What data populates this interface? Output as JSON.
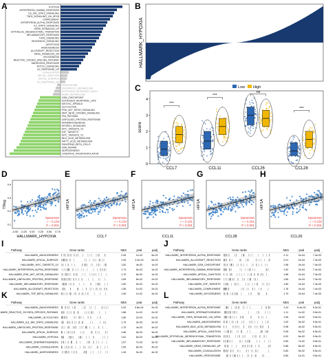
{
  "panels": {
    "A": "A",
    "B": "B",
    "C": "C",
    "D": "D",
    "E": "E",
    "F": "F",
    "G": "G",
    "H": "H",
    "I": "I",
    "J": "J",
    "K": "K",
    "L": "L"
  },
  "colors": {
    "blue": "#17396f",
    "grey": "#c8c8c8",
    "green": "#8fd46c",
    "low": "#2c67b3",
    "high": "#f2b705",
    "red": "#e03030",
    "scatter": "#2c78c7"
  },
  "chart_data": [
    {
      "id": "A",
      "type": "bar",
      "orientation": "horizontal",
      "categories": [
        "HYPOXIA",
        "INTERFERON_GAMMA_RESPONSE",
        "IL6_JAK_STAT3_SIGNALING",
        "TNFA_SIGNALING_VIA_NFKB",
        "COMPLEMENT",
        "INTERFERON_ALPHA_RESPONSE",
        "IL2_STAT5_SIGNALING",
        "KRAS_SIGNALING_UP",
        "EPITHELIAL_MESENCHYMAL_TRANSITION",
        "INFLAMMATORY_RESPONSE",
        "TGFB_SIGNALING",
        "HEDGEHOG_SIGNALING",
        "APOPTOSIS",
        "ANGIOGENESIS",
        "ALLOGRAFT_REJECTION",
        "KRAS_SIGNALING_DN",
        "MYOGENESIS",
        "REACTIVE_OXIGEN_SPECIES_PATHWAY",
        "ANDROGEN_RESPONSE",
        "NOTCH_SIGNALING",
        "UV_RESPONSE_UP",
        "COAGULATION",
        "APICAL_JUNCTION",
        "APICAL_SURFACE",
        "UV_RESPONSE_DN",
        "PEROXISOME",
        "XENOBIOTIC_METABOLISM",
        "ESTROGEN_RESPONSE_EARLY",
        "HEME_METABOLISM",
        "G2M_CHECKPOINT",
        "ESTROGEN_RESPONSE_LATE",
        "MITOTIC_SPINDLE",
        "GLYCOLYSIS",
        "PI3K_AKT_MTOR_SIGNALING",
        "WNT_BETA_CATENIN_SIGNALING",
        "P53_PATHWAY",
        "UNFOLDED_PROTEIN_RESPONSE",
        "SPERMATOGENESIS",
        "MTORC1_SIGNALING",
        "MYC_TARGETS_V2",
        "E2F_TARGETS",
        "MYC_TARGETS_V1",
        "BILE_ACID_METABOLISM",
        "FATTY_ACID_METABOLISM",
        "PANCREAS_BETA_CELLS",
        "DNA_REPAIR",
        "ADIPOGENESIS",
        "OXIDATIVE_PHOSPHORYLATION"
      ],
      "values": [
        0.9,
        0.82,
        0.78,
        0.76,
        0.72,
        0.68,
        0.66,
        0.62,
        0.6,
        0.58,
        0.56,
        0.52,
        0.5,
        0.46,
        0.44,
        0.4,
        0.36,
        0.33,
        0.3,
        0.27,
        0.24,
        0.12,
        0.1,
        0.09,
        0.07,
        -0.05,
        -0.07,
        -0.09,
        -0.11,
        -0.3,
        -0.32,
        -0.34,
        -0.36,
        -0.38,
        -0.4,
        -0.42,
        -0.44,
        -0.46,
        -0.48,
        -0.5,
        -0.52,
        -0.54,
        -0.56,
        -0.58,
        -0.6,
        -0.64,
        -0.68,
        -0.74
      ],
      "group_colors": [
        "blue",
        "grey",
        "green"
      ],
      "group_sizes": [
        21,
        8,
        19
      ],
      "xlim": [
        -0.8,
        1.0
      ]
    },
    {
      "id": "B",
      "type": "bar",
      "ylabel": "HALLMARK_HYPOXIA",
      "ylim": [
        -1.0,
        1.0
      ],
      "note": "sorted waterfall of ~200 samples"
    },
    {
      "id": "C",
      "type": "box",
      "ylabel": "score",
      "legend_title": "",
      "legend": [
        "Low",
        "High"
      ],
      "categories": [
        "CCL7",
        "CCL11",
        "CCL26",
        "CCL28"
      ],
      "ylim": [
        0,
        4.5
      ],
      "yticks": [
        0,
        1,
        2,
        3,
        4
      ],
      "series": [
        {
          "name": "Low",
          "median": [
            0.9,
            1.4,
            3.0,
            0.8
          ],
          "q1": [
            0.5,
            0.9,
            2.4,
            0.5
          ],
          "q3": [
            1.4,
            2.0,
            3.5,
            1.3
          ]
        },
        {
          "name": "High",
          "median": [
            1.8,
            2.3,
            2.8,
            1.5
          ],
          "q1": [
            1.3,
            1.8,
            2.3,
            1.0
          ],
          "q3": [
            2.3,
            2.8,
            3.3,
            2.0
          ]
        }
      ],
      "significance": [
        "***",
        "***",
        "ns",
        "***"
      ]
    },
    {
      "id": "D",
      "type": "scatter",
      "xlabel": "HALLMARK_HYPOXIA",
      "ylabel": "TReg",
      "xticks": [
        "-0.50",
        "-0.25",
        "0.00",
        "0.25",
        "0.50",
        "0.75"
      ],
      "yticks": [
        "0.4",
        "0.3",
        "0.2",
        "0.1"
      ],
      "stats": [
        "Spearman",
        "r = 0.194",
        "P = 0.001"
      ]
    },
    {
      "id": "E",
      "type": "scatter",
      "xlabel": "CCL7",
      "ylabel": "HIF1A",
      "stats": [
        "Spearman",
        "r = 0.154",
        "P < 0.001"
      ]
    },
    {
      "id": "F",
      "type": "scatter",
      "xlabel": "CCL11",
      "ylabel": "HIF1A",
      "stats": [
        "Spearman",
        "r = 0.181",
        "P < 0.001"
      ]
    },
    {
      "id": "G",
      "type": "scatter",
      "xlabel": "CCL28",
      "ylabel": "HIF1A",
      "stats": [
        "Spearman",
        "r = 0.281",
        "P < 0.001"
      ]
    },
    {
      "id": "H",
      "type": "scatter",
      "xlabel": "CCL26",
      "ylabel": "HIF1A",
      "stats": [
        "Spearman",
        "r = 0.150",
        "P < 0.001"
      ]
    }
  ],
  "gsea_tables": {
    "headers": {
      "pathway": "Pathway",
      "ranks": "Gene ranks",
      "nes": "NES",
      "pval": "pval",
      "padj": "padj"
    },
    "I": [
      {
        "p": "HALLMARK_ANGIOGENESIS",
        "nes": "2.06",
        "pval": "1e-03",
        "padj": "5e-03"
      },
      {
        "p": "HALLMARK_APICAL_SURFACE",
        "nes": "1.94",
        "pval": "2.0e-03",
        "padj": "5e-03"
      },
      {
        "p": "HALLMARK_MYC_TARGETS_V2",
        "nes": "1.82",
        "pval": "4e-03",
        "padj": "1e-02"
      },
      {
        "p": "HALLMARK_INTERFERON_ALPHA_RESPONSE",
        "nes": "1.74",
        "pval": "5e-03",
        "padj": "1e-02"
      },
      {
        "p": "HALLMARK_PI3K_AKT_MTOR_SIGNALING",
        "nes": "1.70",
        "pval": "6e-03",
        "padj": "1e-02"
      },
      {
        "p": "HALLMARK_UNFOLDED_PROTEIN_RESPONSE",
        "nes": "1.65",
        "pval": "8e-03",
        "padj": "2e-02"
      },
      {
        "p": "HALLMARK_INFLAMMATORY_RESPONSE",
        "nes": "1.60",
        "pval": "9e-03",
        "padj": "2e-02"
      },
      {
        "p": "HALLMARK_ALLOGRAFT_REJECTION",
        "nes": "1.55",
        "pval": "1e-02",
        "padj": "2e-02"
      },
      {
        "p": "HALLMARK_TGF_BETA_SIGNALING",
        "nes": "1.50",
        "pval": "1e-02",
        "padj": "3e-02"
      }
    ],
    "J": [
      {
        "p": "HALLMARK_INTERFERON_ALPHA_RESPONSE",
        "nes": "2.11",
        "pval": "2e-04",
        "padj": "7.4e-03"
      },
      {
        "p": "HALLMARK_ALLOGRAFT_REJECTION",
        "nes": "2.01",
        "pval": "2e-04",
        "padj": "7.4e-03"
      },
      {
        "p": "HALLMARK_G2M_CHECKPOINT",
        "nes": "1.98",
        "pval": "2e-04",
        "padj": "7.4e-03"
      },
      {
        "p": "HALLMARK_INTERFERON_GAMMA_RESPONSE",
        "nes": "1.92",
        "pval": "2e-04",
        "padj": "7.4e-03"
      },
      {
        "p": "HALLMARK_APICAL_JUNCTION",
        "nes": "1.88",
        "pval": "2e-04",
        "padj": "7.4e-03"
      },
      {
        "p": "HALLMARK_INFLAMMATORY_RESPONSE",
        "nes": "1.85",
        "pval": "2e-04",
        "padj": "7.4e-03"
      },
      {
        "p": "HALLMARK_E2F_TARGETS",
        "nes": "1.80",
        "pval": "2e-04",
        "padj": "7.4e-03"
      },
      {
        "p": "HALLMARK_COMPLEMENT",
        "nes": "1.76",
        "pval": "2e-04",
        "padj": "7.4e-03"
      },
      {
        "p": "HALLMARK_MYOGENESIS",
        "nes": "1.70",
        "pval": "2e-04",
        "padj": "7.4e-03"
      }
    ],
    "K": [
      {
        "p": "HALLMARK_ANGIOGENESIS",
        "nes": "2.02",
        "pval": "5.8e-04",
        "padj": "2e-02"
      },
      {
        "p": "HALLMARK_REACTIVE_OXYGEN_SPECIES_PATHWAY",
        "nes": "1.88",
        "pval": "1e-03",
        "padj": "2e-02"
      },
      {
        "p": "HALLMARK_GLYCOLYSIS",
        "nes": "1.80",
        "pval": "2e-03",
        "padj": "2e-02"
      },
      {
        "p": "HALLMARK_IL6_JAK_STAT3_SIGNALING",
        "nes": "1.74",
        "pval": "3e-03",
        "padj": "3e-02"
      },
      {
        "p": "HALLMARK_UNFOLDED_PROTEIN_RESPONSE",
        "nes": "1.70",
        "pval": "4e-03",
        "padj": "3e-02"
      },
      {
        "p": "HALLMARK_APICAL_SURFACE",
        "nes": "1.66",
        "pval": "5e-03",
        "padj": "3e-02"
      },
      {
        "p": "HALLMARK_HYPOXIA",
        "nes": "1.61",
        "pval": "6e-03",
        "padj": "3e-02"
      },
      {
        "p": "HALLMARK_SPERMATOGENESIS",
        "nes": "1.57",
        "pval": "7e-03",
        "padj": "3e-02"
      },
      {
        "p": "HALLMARK_COAGULATION",
        "nes": "1.53",
        "pval": "8e-03",
        "padj": "4e-02"
      },
      {
        "p": "HALLMARK_ADIPOGENESIS",
        "nes": "1.49",
        "pval": "9e-03",
        "padj": "4e-02"
      }
    ],
    "L": [
      {
        "p": "HALLMARK_INTERFERON_ALPHA_RESPONSE",
        "nes": "1.24",
        "pval": "6.4e-03",
        "padj": "9.2e-01"
      },
      {
        "p": "HALLMARK_SPERMATOGENESIS",
        "nes": "1.11",
        "pval": "1e-02",
        "padj": "9.5e-01"
      },
      {
        "p": "HALLMARK_TNFA_SIGNALING_VIA_NFKB",
        "nes": "1.06",
        "pval": "2e-02",
        "padj": "9.5e-01"
      },
      {
        "p": "HALLMARK_ANGIOGENESIS",
        "nes": "1.02",
        "pval": "3e-02",
        "padj": "9.5e-01"
      },
      {
        "p": "HALLMARK_BILE_ACID_METABOLISM",
        "nes": "0.98",
        "pval": "4e-02",
        "padj": "9.5e-01"
      },
      {
        "p": "HALLMARK_APICAL_JUNCTION",
        "nes": "0.95",
        "pval": "5e-02",
        "padj": "9.5e-01"
      },
      {
        "p": "HALLMARK_EPITHELIAL_MESENCHYMAL_TRANSITION",
        "nes": "0.92",
        "pval": "6e-02",
        "padj": "9.5e-01"
      },
      {
        "p": "HALLMARK_INFLAMMATORY_RESPONSE",
        "nes": "0.89",
        "pval": "7e-02",
        "padj": "9.5e-01"
      },
      {
        "p": "HALLMARK_KRAS_SIGNALING_UP",
        "nes": "0.86",
        "pval": "8e-02",
        "padj": "9.5e-01"
      },
      {
        "p": "HALLMARK_COAGULATION",
        "nes": "0.83",
        "pval": "9e-02",
        "padj": "9.5e-01"
      },
      {
        "p": "HALLMARK_PEROXISOME",
        "nes": "0.80",
        "pval": "1e-01",
        "padj": "9.5e-01"
      }
    ]
  }
}
